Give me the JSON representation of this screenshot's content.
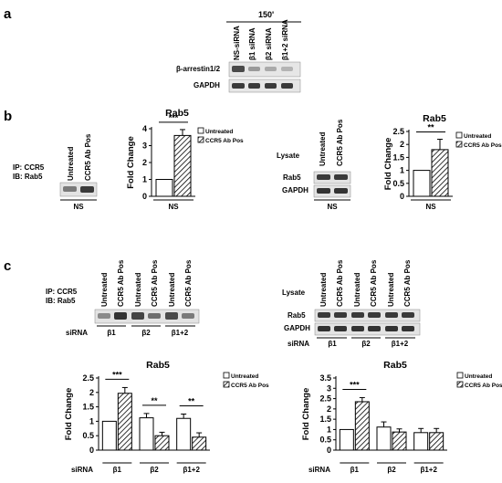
{
  "panels": {
    "a": {
      "letter": "a",
      "time": "150'",
      "lanes": [
        "NS-siRNA",
        "β1 siRNA",
        "β2 siRNA",
        "β1+2 siRNA"
      ],
      "rows": [
        "β-arrestin1/2",
        "GAPDH"
      ]
    },
    "b_ip": {
      "letter": "b",
      "ip": "IP: CCR5",
      "ib": "IB: Rab5",
      "lanes": [
        "Untreated",
        "CCR5 Ab Pos"
      ],
      "group": "NS"
    },
    "b_lysate": {
      "label": "Lysate",
      "lanes": [
        "Untreated",
        "CCR5 Ab Pos"
      ],
      "rows": [
        "Rab5",
        "GAPDH"
      ],
      "group": "NS"
    },
    "c_ip": {
      "letter": "c",
      "ip": "IP: CCR5",
      "ib": "IB: Rab5",
      "lanes": [
        "Untreated",
        "CCR5 Ab Pos",
        "Untreated",
        "CCR5 Ab Pos",
        "Untreated",
        "CCR5 Ab Pos"
      ],
      "sirna": "siRNA",
      "groups": [
        "β1",
        "β2",
        "β1+2"
      ]
    },
    "c_lysate": {
      "label": "Lysate",
      "lanes": [
        "Untreated",
        "CCR5 Ab Pos",
        "Untreated",
        "CCR5 Ab Pos",
        "Untreated",
        "CCR5 Ab Pos"
      ],
      "rows": [
        "Rab5",
        "GAPDH"
      ],
      "sirna": "siRNA",
      "groups": [
        "β1",
        "β2",
        "β1+2"
      ]
    }
  },
  "chart_data": [
    {
      "id": "b1",
      "type": "bar",
      "title": "Rab5",
      "ylabel": "Fold Change",
      "xlabel": "",
      "ylim": [
        0,
        4
      ],
      "yticks": [
        0,
        1,
        2,
        3,
        4
      ],
      "yticklabels": [
        "0",
        "1",
        "2",
        "3",
        "4"
      ],
      "categories": [
        "NS"
      ],
      "series": [
        {
          "name": "Untreated",
          "values": [
            1.0
          ],
          "errors": [
            0
          ]
        },
        {
          "name": "CCR5 Ab Pos",
          "values": [
            3.6
          ],
          "errors": [
            0.35
          ]
        }
      ],
      "significance": [
        {
          "group": 0,
          "label": "***"
        }
      ],
      "legend": "top-right",
      "grid": false
    },
    {
      "id": "b2",
      "type": "bar",
      "title": "Rab5",
      "ylabel": "Fold Change",
      "xlabel": "",
      "ylim": [
        0,
        2.5
      ],
      "yticks": [
        0,
        0.5,
        1,
        1.5,
        2,
        2.5
      ],
      "yticklabels": [
        "0",
        "0.5",
        "1",
        "1.5",
        "2",
        "2.5"
      ],
      "categories": [
        "NS"
      ],
      "series": [
        {
          "name": "Untreated",
          "values": [
            1.0
          ],
          "errors": [
            0
          ]
        },
        {
          "name": "CCR5 Ab Pos",
          "values": [
            1.8
          ],
          "errors": [
            0.4
          ]
        }
      ],
      "significance": [
        {
          "group": 0,
          "label": "**"
        }
      ],
      "legend": "top-right",
      "grid": false
    },
    {
      "id": "c1",
      "type": "bar",
      "title": "Rab5",
      "ylabel": "Fold Change",
      "xlabel": "siRNA",
      "ylim": [
        0,
        2.5
      ],
      "yticks": [
        0,
        0.5,
        1,
        1.5,
        2,
        2.5
      ],
      "yticklabels": [
        "0",
        "0.5",
        "1",
        "1.5",
        "2",
        "2.5"
      ],
      "categories": [
        "β1",
        "β2",
        "β1+2"
      ],
      "series": [
        {
          "name": "Untreated",
          "values": [
            1.0,
            1.12,
            1.1
          ],
          "errors": [
            0,
            0.15,
            0.15
          ]
        },
        {
          "name": "CCR5 Ab Pos",
          "values": [
            1.97,
            0.5,
            0.45
          ],
          "errors": [
            0.2,
            0.12,
            0.15
          ]
        }
      ],
      "significance": [
        {
          "group": 0,
          "label": "***"
        },
        {
          "group": 1,
          "label": "**"
        },
        {
          "group": 2,
          "label": "**"
        }
      ],
      "legend": "top-right",
      "grid": false
    },
    {
      "id": "c2",
      "type": "bar",
      "title": "Rab5",
      "ylabel": "Fold Change",
      "xlabel": "siRNA",
      "ylim": [
        0,
        3.5
      ],
      "yticks": [
        0,
        0.5,
        1,
        1.5,
        2,
        2.5,
        3,
        3.5
      ],
      "yticklabels": [
        "0",
        "0.5",
        "1",
        "1.5",
        "2",
        "2.5",
        "3",
        "3.5"
      ],
      "categories": [
        "β1",
        "β2",
        "β1+2"
      ],
      "series": [
        {
          "name": "Untreated",
          "values": [
            1.0,
            1.12,
            0.85
          ],
          "errors": [
            0,
            0.25,
            0.2
          ]
        },
        {
          "name": "CCR5 Ab Pos",
          "values": [
            2.35,
            0.88,
            0.85
          ],
          "errors": [
            0.2,
            0.15,
            0.2
          ]
        }
      ],
      "significance": [
        {
          "group": 0,
          "label": "***"
        }
      ],
      "legend": "top-right",
      "grid": false
    }
  ]
}
